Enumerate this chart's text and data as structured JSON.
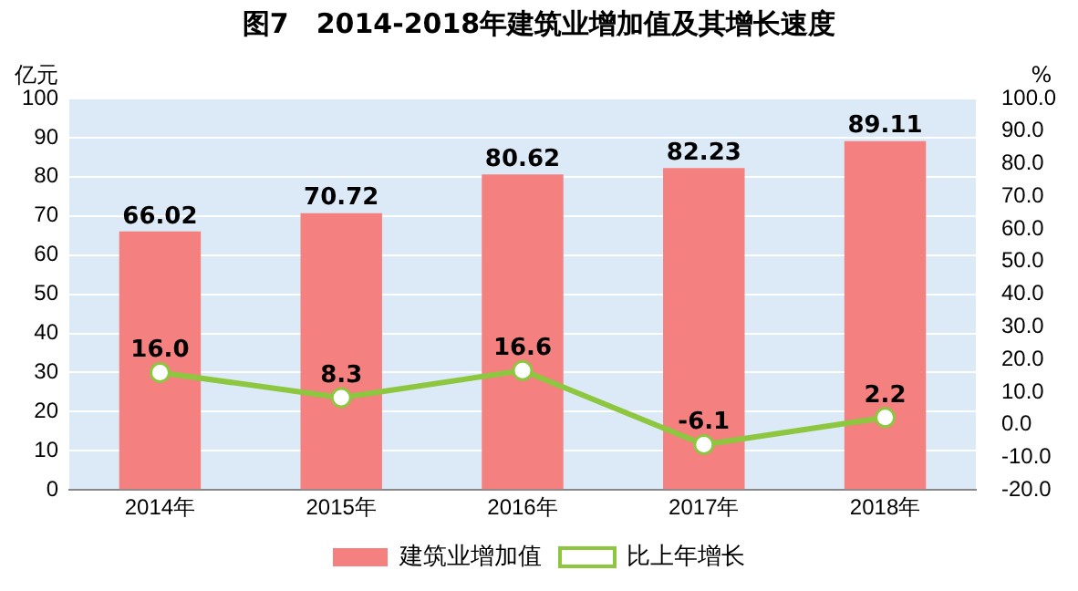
{
  "chart_data": {
    "type": "bar",
    "title": "图7　2014-2018年建筑业增加值及其增长速度",
    "ylabel": "亿元",
    "y2label": "%",
    "categories": [
      "2014年",
      "2015年",
      "2016年",
      "2017年",
      "2018年"
    ],
    "series": [
      {
        "name": "建筑业增加值",
        "color": "#f4817f",
        "values": [
          66.02,
          70.72,
          80.62,
          82.23,
          89.11
        ],
        "value_labels": [
          "66.02",
          "70.72",
          "80.62",
          "82.23",
          "89.11"
        ]
      },
      {
        "name": "比上年增长",
        "type": "line",
        "axis": "y2",
        "color": "#8dc63f",
        "marker": "circle",
        "values": [
          16.0,
          8.3,
          16.6,
          -6.1,
          2.2
        ],
        "value_labels": [
          "16.0",
          "8.3",
          "16.6",
          "-6.1",
          "2.2"
        ]
      }
    ],
    "ylim": [
      0,
      100
    ],
    "yticks": [
      0,
      10,
      20,
      30,
      40,
      50,
      60,
      70,
      80,
      90,
      100
    ],
    "y2lim": [
      -20,
      100
    ],
    "y2ticks": [
      {
        "value": -20,
        "label": "-20.0"
      },
      {
        "value": -10,
        "label": "-10.0"
      },
      {
        "value": 0,
        "label": "0.0"
      },
      {
        "value": 10,
        "label": "10.0"
      },
      {
        "value": 20,
        "label": "20.0"
      },
      {
        "value": 30,
        "label": "30.0"
      },
      {
        "value": 40,
        "label": "40.0"
      },
      {
        "value": 50,
        "label": "50.0"
      },
      {
        "value": 60,
        "label": "60.0"
      },
      {
        "value": 70,
        "label": "70.0"
      },
      {
        "value": 80,
        "label": "80.0"
      },
      {
        "value": 90,
        "label": "90.0"
      },
      {
        "value": 100,
        "label": "100.0"
      }
    ],
    "grid": "y",
    "legend": "bottom"
  }
}
